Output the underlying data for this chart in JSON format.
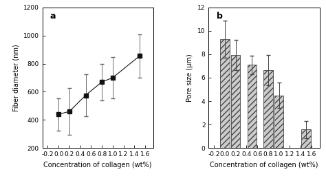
{
  "chart_a": {
    "x": [
      0.0,
      0.2,
      0.5,
      0.8,
      1.0,
      1.5
    ],
    "y": [
      440,
      460,
      575,
      670,
      700,
      855
    ],
    "yerr": [
      115,
      165,
      150,
      130,
      145,
      155
    ],
    "ylabel": "Fiber diameter (nm)",
    "xlabel": "Concentration of collagen (wt%)",
    "xlim": [
      -0.3,
      1.75
    ],
    "ylim": [
      200,
      1200
    ],
    "yticks": [
      200,
      400,
      600,
      800,
      1000,
      1200
    ],
    "xticks": [
      -0.2,
      0.0,
      0.2,
      0.4,
      0.6,
      0.8,
      1.0,
      1.2,
      1.4,
      1.6
    ],
    "xticklabels": [
      "-0.2",
      "0.0",
      "0.2",
      "0.4",
      "0.6",
      "0.8",
      "1.0",
      "1.2",
      "1.4",
      "1.6"
    ],
    "label": "a"
  },
  "chart_b": {
    "x": [
      0.0,
      0.2,
      0.5,
      0.8,
      1.0,
      1.5
    ],
    "y": [
      9.3,
      7.95,
      7.1,
      6.65,
      4.5,
      1.58
    ],
    "yerr": [
      1.6,
      1.3,
      0.8,
      1.3,
      1.1,
      0.75
    ],
    "ylabel": "Pore size (μm)",
    "xlabel": "Concentration of collagen (wt%)",
    "xlim": [
      -0.3,
      1.75
    ],
    "ylim": [
      0,
      12
    ],
    "yticks": [
      0,
      2,
      4,
      6,
      8,
      10,
      12
    ],
    "xticks": [
      -0.2,
      0.0,
      0.2,
      0.4,
      0.6,
      0.8,
      1.0,
      1.2,
      1.4,
      1.6
    ],
    "xticklabels": [
      "-0.2",
      "0.0",
      "0.2",
      "0.4",
      "0.6",
      "0.8",
      "1.0",
      "1.2",
      "1.4",
      "1.6"
    ],
    "label": "b"
  },
  "bar_width": 0.17,
  "hatch": "////",
  "bar_color": "#cccccc",
  "bar_edge_color": "#444444",
  "line_color": "#666666",
  "marker": "s",
  "marker_color": "#111111",
  "marker_size": 4,
  "linewidth": 0.8,
  "capsize": 2.5,
  "elinewidth": 0.7,
  "fontsize_label": 7,
  "fontsize_tick": 6.5,
  "fontsize_annot": 9
}
